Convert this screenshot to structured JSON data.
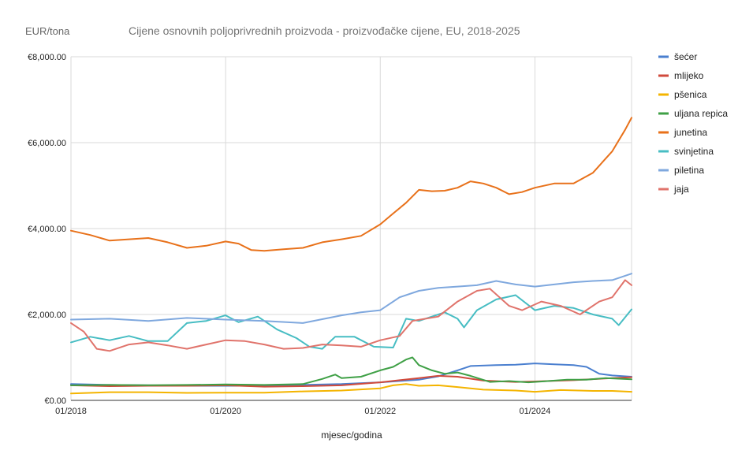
{
  "chart_data": {
    "type": "line",
    "title": "Cijene osnovnih poljoprivrednih proizvoda - proizvođačke cijene, EU, 2018-2025",
    "ylabel": "EUR/tona",
    "xlabel": "mjesec/godina",
    "ylim": [
      0,
      8000
    ],
    "xlim": [
      "2018-01",
      "2025-04"
    ],
    "y_ticks": [
      {
        "value": 0,
        "label": "€0.00"
      },
      {
        "value": 2000,
        "label": "€2,000.00"
      },
      {
        "value": 4000,
        "label": "€4,000.00"
      },
      {
        "value": 6000,
        "label": "€6,000.00"
      },
      {
        "value": 8000,
        "label": "€8,000.00"
      }
    ],
    "x_ticks": [
      {
        "value": "2018-01",
        "label": "01/2018"
      },
      {
        "value": "2020-01",
        "label": "01/2020"
      },
      {
        "value": "2022-01",
        "label": "01/2022"
      },
      {
        "value": "2024-01",
        "label": "01/2024"
      }
    ],
    "grid": true,
    "legend_position": "right",
    "series": [
      {
        "name": "šećer",
        "color": "#4a7fcf",
        "points": [
          [
            "2018-01",
            380
          ],
          [
            "2018-07",
            360
          ],
          [
            "2019-01",
            350
          ],
          [
            "2019-07",
            340
          ],
          [
            "2020-01",
            340
          ],
          [
            "2020-07",
            340
          ],
          [
            "2021-01",
            360
          ],
          [
            "2021-07",
            380
          ],
          [
            "2022-01",
            420
          ],
          [
            "2022-07",
            480
          ],
          [
            "2022-10",
            560
          ],
          [
            "2023-01",
            700
          ],
          [
            "2023-03",
            800
          ],
          [
            "2023-07",
            820
          ],
          [
            "2023-10",
            830
          ],
          [
            "2024-01",
            860
          ],
          [
            "2024-04",
            840
          ],
          [
            "2024-07",
            820
          ],
          [
            "2024-09",
            780
          ],
          [
            "2024-11",
            620
          ],
          [
            "2025-01",
            580
          ],
          [
            "2025-04",
            550
          ]
        ]
      },
      {
        "name": "mlijeko",
        "color": "#d04a3c",
        "points": [
          [
            "2018-01",
            350
          ],
          [
            "2018-07",
            330
          ],
          [
            "2019-01",
            340
          ],
          [
            "2019-07",
            340
          ],
          [
            "2020-01",
            350
          ],
          [
            "2020-07",
            320
          ],
          [
            "2021-01",
            330
          ],
          [
            "2021-07",
            350
          ],
          [
            "2022-01",
            420
          ],
          [
            "2022-07",
            520
          ],
          [
            "2022-10",
            570
          ],
          [
            "2023-01",
            550
          ],
          [
            "2023-05",
            460
          ],
          [
            "2023-10",
            430
          ],
          [
            "2024-01",
            440
          ],
          [
            "2024-07",
            470
          ],
          [
            "2025-01",
            520
          ],
          [
            "2025-04",
            540
          ]
        ]
      },
      {
        "name": "pšenica",
        "color": "#f4b400",
        "points": [
          [
            "2018-01",
            160
          ],
          [
            "2018-07",
            190
          ],
          [
            "2019-01",
            190
          ],
          [
            "2019-07",
            175
          ],
          [
            "2020-01",
            180
          ],
          [
            "2020-07",
            180
          ],
          [
            "2021-01",
            210
          ],
          [
            "2021-07",
            230
          ],
          [
            "2022-01",
            280
          ],
          [
            "2022-03",
            350
          ],
          [
            "2022-05",
            380
          ],
          [
            "2022-07",
            340
          ],
          [
            "2022-10",
            350
          ],
          [
            "2023-01",
            310
          ],
          [
            "2023-05",
            250
          ],
          [
            "2023-10",
            230
          ],
          [
            "2024-01",
            200
          ],
          [
            "2024-05",
            240
          ],
          [
            "2024-10",
            220
          ],
          [
            "2025-01",
            220
          ],
          [
            "2025-04",
            200
          ]
        ]
      },
      {
        "name": "uljana repica",
        "color": "#3fa046",
        "points": [
          [
            "2018-01",
            350
          ],
          [
            "2018-07",
            360
          ],
          [
            "2019-01",
            355
          ],
          [
            "2019-07",
            360
          ],
          [
            "2020-01",
            370
          ],
          [
            "2020-07",
            360
          ],
          [
            "2021-01",
            380
          ],
          [
            "2021-04",
            500
          ],
          [
            "2021-06",
            600
          ],
          [
            "2021-07",
            520
          ],
          [
            "2021-10",
            550
          ],
          [
            "2022-01",
            700
          ],
          [
            "2022-03",
            780
          ],
          [
            "2022-05",
            950
          ],
          [
            "2022-06",
            1000
          ],
          [
            "2022-07",
            820
          ],
          [
            "2022-09",
            700
          ],
          [
            "2022-11",
            620
          ],
          [
            "2023-01",
            650
          ],
          [
            "2023-03",
            570
          ],
          [
            "2023-06",
            430
          ],
          [
            "2023-09",
            450
          ],
          [
            "2023-12",
            420
          ],
          [
            "2024-03",
            450
          ],
          [
            "2024-06",
            480
          ],
          [
            "2024-09",
            480
          ],
          [
            "2024-12",
            520
          ],
          [
            "2025-04",
            490
          ]
        ]
      },
      {
        "name": "junetina",
        "color": "#e8711a",
        "points": [
          [
            "2018-01",
            3950
          ],
          [
            "2018-04",
            3850
          ],
          [
            "2018-07",
            3720
          ],
          [
            "2018-10",
            3750
          ],
          [
            "2019-01",
            3780
          ],
          [
            "2019-04",
            3680
          ],
          [
            "2019-07",
            3550
          ],
          [
            "2019-10",
            3600
          ],
          [
            "2020-01",
            3700
          ],
          [
            "2020-03",
            3650
          ],
          [
            "2020-05",
            3500
          ],
          [
            "2020-07",
            3480
          ],
          [
            "2020-10",
            3520
          ],
          [
            "2021-01",
            3550
          ],
          [
            "2021-04",
            3680
          ],
          [
            "2021-07",
            3750
          ],
          [
            "2021-10",
            3830
          ],
          [
            "2022-01",
            4100
          ],
          [
            "2022-03",
            4350
          ],
          [
            "2022-05",
            4600
          ],
          [
            "2022-07",
            4900
          ],
          [
            "2022-09",
            4870
          ],
          [
            "2022-11",
            4880
          ],
          [
            "2023-01",
            4950
          ],
          [
            "2023-03",
            5100
          ],
          [
            "2023-05",
            5050
          ],
          [
            "2023-07",
            4950
          ],
          [
            "2023-09",
            4800
          ],
          [
            "2023-11",
            4850
          ],
          [
            "2024-01",
            4950
          ],
          [
            "2024-04",
            5050
          ],
          [
            "2024-07",
            5050
          ],
          [
            "2024-10",
            5300
          ],
          [
            "2025-01",
            5800
          ],
          [
            "2025-03",
            6300
          ],
          [
            "2025-04",
            6580
          ]
        ]
      },
      {
        "name": "svinjetina",
        "color": "#47bdc3",
        "points": [
          [
            "2018-01",
            1350
          ],
          [
            "2018-04",
            1480
          ],
          [
            "2018-07",
            1400
          ],
          [
            "2018-10",
            1500
          ],
          [
            "2019-01",
            1380
          ],
          [
            "2019-04",
            1380
          ],
          [
            "2019-07",
            1800
          ],
          [
            "2019-10",
            1850
          ],
          [
            "2020-01",
            1980
          ],
          [
            "2020-03",
            1820
          ],
          [
            "2020-06",
            1950
          ],
          [
            "2020-09",
            1650
          ],
          [
            "2020-12",
            1450
          ],
          [
            "2021-02",
            1250
          ],
          [
            "2021-04",
            1200
          ],
          [
            "2021-06",
            1480
          ],
          [
            "2021-09",
            1480
          ],
          [
            "2021-12",
            1250
          ],
          [
            "2022-03",
            1230
          ],
          [
            "2022-05",
            1900
          ],
          [
            "2022-07",
            1850
          ],
          [
            "2022-09",
            1950
          ],
          [
            "2022-11",
            2050
          ],
          [
            "2023-01",
            1900
          ],
          [
            "2023-02",
            1700
          ],
          [
            "2023-04",
            2100
          ],
          [
            "2023-07",
            2350
          ],
          [
            "2023-10",
            2450
          ],
          [
            "2024-01",
            2100
          ],
          [
            "2024-04",
            2200
          ],
          [
            "2024-07",
            2150
          ],
          [
            "2024-10",
            2000
          ],
          [
            "2025-01",
            1900
          ],
          [
            "2025-02",
            1750
          ],
          [
            "2025-04",
            2120
          ]
        ]
      },
      {
        "name": "piletina",
        "color": "#7fa8de",
        "points": [
          [
            "2018-01",
            1880
          ],
          [
            "2018-07",
            1900
          ],
          [
            "2019-01",
            1850
          ],
          [
            "2019-07",
            1920
          ],
          [
            "2020-01",
            1880
          ],
          [
            "2020-07",
            1850
          ],
          [
            "2021-01",
            1800
          ],
          [
            "2021-07",
            1980
          ],
          [
            "2021-10",
            2050
          ],
          [
            "2022-01",
            2100
          ],
          [
            "2022-04",
            2400
          ],
          [
            "2022-07",
            2550
          ],
          [
            "2022-10",
            2620
          ],
          [
            "2023-01",
            2650
          ],
          [
            "2023-04",
            2680
          ],
          [
            "2023-07",
            2780
          ],
          [
            "2023-10",
            2700
          ],
          [
            "2024-01",
            2650
          ],
          [
            "2024-04",
            2700
          ],
          [
            "2024-07",
            2750
          ],
          [
            "2024-10",
            2780
          ],
          [
            "2025-01",
            2800
          ],
          [
            "2025-04",
            2950
          ]
        ]
      },
      {
        "name": "jaja",
        "color": "#e0736b",
        "points": [
          [
            "2018-01",
            1800
          ],
          [
            "2018-03",
            1600
          ],
          [
            "2018-05",
            1200
          ],
          [
            "2018-07",
            1150
          ],
          [
            "2018-10",
            1300
          ],
          [
            "2019-01",
            1350
          ],
          [
            "2019-04",
            1280
          ],
          [
            "2019-07",
            1200
          ],
          [
            "2019-10",
            1300
          ],
          [
            "2020-01",
            1400
          ],
          [
            "2020-04",
            1380
          ],
          [
            "2020-07",
            1300
          ],
          [
            "2020-10",
            1200
          ],
          [
            "2021-01",
            1220
          ],
          [
            "2021-04",
            1300
          ],
          [
            "2021-07",
            1280
          ],
          [
            "2021-10",
            1250
          ],
          [
            "2022-01",
            1400
          ],
          [
            "2022-04",
            1500
          ],
          [
            "2022-06",
            1850
          ],
          [
            "2022-08",
            1900
          ],
          [
            "2022-10",
            1950
          ],
          [
            "2023-01",
            2300
          ],
          [
            "2023-04",
            2550
          ],
          [
            "2023-06",
            2600
          ],
          [
            "2023-09",
            2200
          ],
          [
            "2023-11",
            2100
          ],
          [
            "2024-02",
            2300
          ],
          [
            "2024-05",
            2200
          ],
          [
            "2024-08",
            2000
          ],
          [
            "2024-11",
            2300
          ],
          [
            "2025-01",
            2400
          ],
          [
            "2025-03",
            2800
          ],
          [
            "2025-04",
            2680
          ]
        ]
      }
    ]
  }
}
